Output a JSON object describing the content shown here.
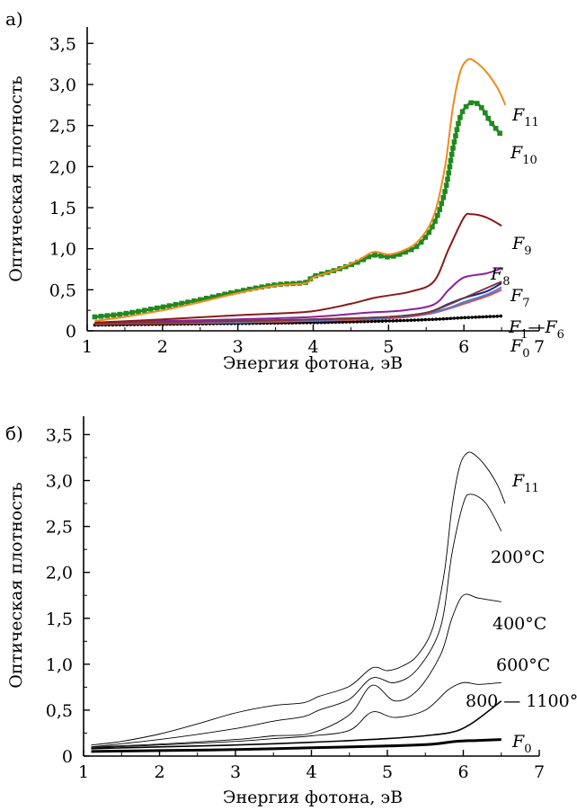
{
  "chart_data": [
    {
      "type": "line",
      "panel_label": "а)",
      "xlabel": "Энергия фотона, эВ",
      "ylabel": "Оптическая плотность",
      "xlim": [
        1,
        7
      ],
      "ylim": [
        0,
        3.7
      ],
      "x_ticks": [
        1,
        2,
        3,
        4,
        5,
        6,
        7
      ],
      "x_tick_labels": [
        "1",
        "2",
        "3",
        "4",
        "5",
        "6",
        "7"
      ],
      "y_ticks": [
        0,
        0.5,
        1.0,
        1.5,
        2.0,
        2.5,
        3.0,
        3.5
      ],
      "y_tick_labels": [
        "0",
        "0,5",
        "1,0",
        "1,5",
        "2,0",
        "2,5",
        "3,0",
        "3,5"
      ],
      "grid": false,
      "series": [
        {
          "name": "F0",
          "label_main": "F",
          "label_sub": "0",
          "color": "#000000",
          "marker": "dots",
          "x": [
            1.1,
            2,
            3,
            4,
            5,
            5.6,
            6,
            6.5
          ],
          "y": [
            0.07,
            0.08,
            0.09,
            0.1,
            0.12,
            0.14,
            0.16,
            0.18
          ]
        },
        {
          "name": "F1–F6 (a)",
          "color": "#d94a4a",
          "x": [
            1.1,
            2,
            3,
            4,
            5,
            5.5,
            5.8,
            6,
            6.3,
            6.5
          ],
          "y": [
            0.08,
            0.09,
            0.1,
            0.12,
            0.15,
            0.2,
            0.27,
            0.33,
            0.42,
            0.5
          ]
        },
        {
          "name": "F1–F6 (b)",
          "color": "#4a7fd9",
          "x": [
            1.1,
            2,
            3,
            4,
            5,
            5.5,
            5.8,
            6,
            6.3,
            6.5
          ],
          "y": [
            0.09,
            0.1,
            0.11,
            0.13,
            0.16,
            0.21,
            0.28,
            0.35,
            0.44,
            0.53
          ]
        },
        {
          "name": "F1–F6",
          "label_main": "F",
          "label_sub": "1",
          "label_suffix_main": "F",
          "label_suffix_sub": "6",
          "color": "#1a1a9a",
          "x": [
            1.1,
            2,
            3,
            4,
            5,
            5.5,
            5.8,
            6,
            6.3,
            6.5
          ],
          "y": [
            0.1,
            0.11,
            0.12,
            0.14,
            0.17,
            0.22,
            0.33,
            0.4,
            0.48,
            0.58
          ]
        },
        {
          "name": "F7",
          "label_main": "F",
          "label_sub": "7",
          "color": "#8e1f9e",
          "x": [
            1.1,
            2,
            3,
            4,
            4.7,
            5.2,
            5.6,
            5.8,
            6,
            6.3,
            6.5
          ],
          "y": [
            0.1,
            0.12,
            0.14,
            0.17,
            0.22,
            0.25,
            0.32,
            0.5,
            0.65,
            0.7,
            0.76
          ]
        },
        {
          "name": "F8",
          "label_main": "F",
          "label_sub": "8",
          "color": "#7a3a3a",
          "x": [
            1.1,
            2,
            3,
            4,
            5,
            5.5,
            5.8,
            6,
            6.5
          ],
          "y": [
            0.09,
            0.1,
            0.12,
            0.14,
            0.17,
            0.22,
            0.32,
            0.4,
            0.6
          ]
        },
        {
          "name": "F9",
          "label_main": "F",
          "label_sub": "9",
          "color": "#8a1a1a",
          "x": [
            1.1,
            2,
            3,
            3.5,
            4,
            4.5,
            4.8,
            5,
            5.3,
            5.6,
            5.8,
            6,
            6.1,
            6.3,
            6.5
          ],
          "y": [
            0.1,
            0.14,
            0.19,
            0.21,
            0.24,
            0.33,
            0.4,
            0.43,
            0.48,
            0.6,
            1.0,
            1.38,
            1.42,
            1.38,
            1.28
          ]
        },
        {
          "name": "F10",
          "label_main": "F",
          "label_sub": "10",
          "color": "#1f8a1f",
          "marker": "squares",
          "x": [
            1.1,
            1.5,
            2,
            2.5,
            3,
            3.5,
            3.9,
            4,
            4.3,
            4.6,
            4.8,
            5,
            5.2,
            5.4,
            5.6,
            5.75,
            5.85,
            5.95,
            6.05,
            6.15,
            6.25,
            6.35,
            6.5
          ],
          "y": [
            0.17,
            0.21,
            0.29,
            0.38,
            0.48,
            0.56,
            0.59,
            0.66,
            0.74,
            0.84,
            0.92,
            0.9,
            0.95,
            1.05,
            1.3,
            1.7,
            2.2,
            2.6,
            2.75,
            2.78,
            2.7,
            2.55,
            2.38
          ]
        },
        {
          "name": "F11",
          "label_main": "F",
          "label_sub": "11",
          "color": "#f28a1a",
          "x": [
            1.1,
            1.5,
            2,
            2.5,
            3,
            3.5,
            3.9,
            4,
            4.3,
            4.6,
            4.8,
            5,
            5.2,
            5.4,
            5.6,
            5.75,
            5.85,
            5.95,
            6.05,
            6.15,
            6.3,
            6.45,
            6.55
          ],
          "y": [
            0.12,
            0.17,
            0.25,
            0.35,
            0.46,
            0.55,
            0.58,
            0.65,
            0.74,
            0.86,
            0.96,
            0.93,
            0.98,
            1.1,
            1.4,
            2.0,
            2.7,
            3.15,
            3.3,
            3.28,
            3.15,
            2.95,
            2.75
          ]
        }
      ]
    },
    {
      "type": "line",
      "panel_label": "б)",
      "xlabel": "Энергия фотона, эВ",
      "ylabel": "Оптическая плотность",
      "xlim": [
        1,
        7
      ],
      "ylim": [
        0,
        3.7
      ],
      "x_ticks": [
        1,
        2,
        3,
        4,
        5,
        6,
        7
      ],
      "x_tick_labels": [
        "1",
        "2",
        "3",
        "4",
        "5",
        "6",
        "7"
      ],
      "y_ticks": [
        0,
        0.5,
        1.0,
        1.5,
        2.0,
        2.5,
        3.0,
        3.5
      ],
      "y_tick_labels": [
        "0",
        "0,5",
        "1,0",
        "1,5",
        "2,0",
        "2,5",
        "3,0",
        "3,5"
      ],
      "grid": false,
      "series": [
        {
          "name": "F0",
          "label_main": "F",
          "label_sub": "0",
          "color": "#000000",
          "width": 3,
          "x": [
            1.1,
            2,
            3,
            4,
            5,
            5.6,
            5.9,
            6.2,
            6.5
          ],
          "y": [
            0.05,
            0.06,
            0.07,
            0.09,
            0.11,
            0.13,
            0.16,
            0.17,
            0.18
          ]
        },
        {
          "name": "800–1100°C",
          "label": "800 — 1100°C",
          "color": "#000000",
          "width": 1.6,
          "x": [
            1.1,
            2,
            3,
            4,
            5,
            5.6,
            5.9,
            6.1,
            6.3,
            6.5
          ],
          "y": [
            0.08,
            0.1,
            0.12,
            0.15,
            0.19,
            0.23,
            0.27,
            0.35,
            0.47,
            0.6
          ]
        },
        {
          "name": "600°C",
          "label": "600°C",
          "color": "#000000",
          "width": 0.9,
          "x": [
            1.1,
            2,
            3,
            3.5,
            4,
            4.5,
            4.8,
            5.1,
            5.5,
            5.8,
            6,
            6.2,
            6.5
          ],
          "y": [
            0.09,
            0.12,
            0.16,
            0.19,
            0.22,
            0.28,
            0.48,
            0.42,
            0.5,
            0.72,
            0.8,
            0.78,
            0.8
          ]
        },
        {
          "name": "400°C",
          "label": "400°C",
          "color": "#000000",
          "width": 0.9,
          "x": [
            1.1,
            2,
            3,
            3.5,
            4,
            4.5,
            4.8,
            5.1,
            5.4,
            5.7,
            5.85,
            6,
            6.2,
            6.5
          ],
          "y": [
            0.1,
            0.13,
            0.18,
            0.22,
            0.25,
            0.45,
            0.77,
            0.6,
            0.72,
            1.1,
            1.5,
            1.75,
            1.72,
            1.68
          ]
        },
        {
          "name": "200°C",
          "label": "200°C",
          "color": "#000000",
          "width": 0.9,
          "x": [
            1.1,
            2,
            3,
            3.5,
            3.9,
            4.1,
            4.5,
            4.8,
            5.1,
            5.4,
            5.7,
            5.85,
            6,
            6.1,
            6.3,
            6.5
          ],
          "y": [
            0.1,
            0.18,
            0.3,
            0.38,
            0.43,
            0.5,
            0.62,
            0.85,
            0.8,
            0.95,
            1.4,
            2.2,
            2.75,
            2.85,
            2.75,
            2.45
          ]
        },
        {
          "name": "F11",
          "label_main": "F",
          "label_sub": "11",
          "color": "#000000",
          "width": 0.9,
          "x": [
            1.1,
            1.5,
            2,
            2.5,
            3,
            3.5,
            3.9,
            4.1,
            4.5,
            4.8,
            5,
            5.2,
            5.4,
            5.6,
            5.75,
            5.85,
            5.95,
            6.05,
            6.15,
            6.3,
            6.45,
            6.55
          ],
          "y": [
            0.12,
            0.16,
            0.24,
            0.35,
            0.47,
            0.55,
            0.58,
            0.65,
            0.76,
            0.96,
            0.93,
            0.98,
            1.1,
            1.4,
            2.0,
            2.7,
            3.15,
            3.3,
            3.28,
            3.15,
            2.95,
            2.75
          ]
        }
      ]
    }
  ]
}
